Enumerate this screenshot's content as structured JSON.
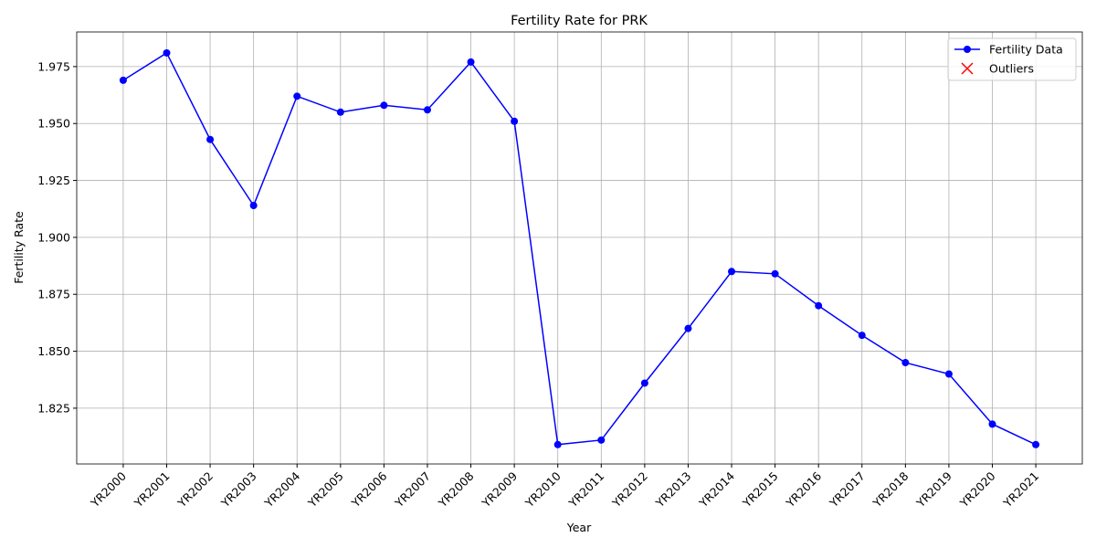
{
  "chart_data": {
    "type": "line",
    "title": "Fertility Rate for PRK",
    "xlabel": "Year",
    "ylabel": "Fertility Rate",
    "categories": [
      "YR2000",
      "YR2001",
      "YR2002",
      "YR2003",
      "YR2004",
      "YR2005",
      "YR2006",
      "YR2007",
      "YR2008",
      "YR2009",
      "YR2010",
      "YR2011",
      "YR2012",
      "YR2013",
      "YR2014",
      "YR2015",
      "YR2016",
      "YR2017",
      "YR2018",
      "YR2019",
      "YR2020",
      "YR2021"
    ],
    "series": [
      {
        "name": "Fertility Data",
        "color": "#0000ff",
        "marker": "o",
        "values": [
          1.969,
          1.981,
          1.943,
          1.914,
          1.962,
          1.955,
          1.958,
          1.956,
          1.977,
          1.951,
          1.809,
          1.811,
          1.836,
          1.86,
          1.885,
          1.884,
          1.87,
          1.857,
          1.845,
          1.84,
          1.818,
          1.809
        ]
      },
      {
        "name": "Outliers",
        "color": "#ff0000",
        "marker": "x",
        "values": [
          null,
          null,
          null,
          null,
          null,
          null,
          null,
          null,
          null,
          null,
          null,
          null,
          null,
          null,
          null,
          null,
          null,
          null,
          null,
          null,
          null,
          null
        ]
      }
    ],
    "ylim": [
      1.8005,
      1.9902
    ],
    "yticks": [
      1.825,
      {
        "value": 1.85,
        "label": "1.850"
      },
      1.875,
      {
        "value": 1.9,
        "label": "1.900"
      },
      1.925,
      {
        "value": 1.95,
        "label": "1.950"
      },
      1.975
    ],
    "grid": true,
    "legend": "upper right"
  }
}
